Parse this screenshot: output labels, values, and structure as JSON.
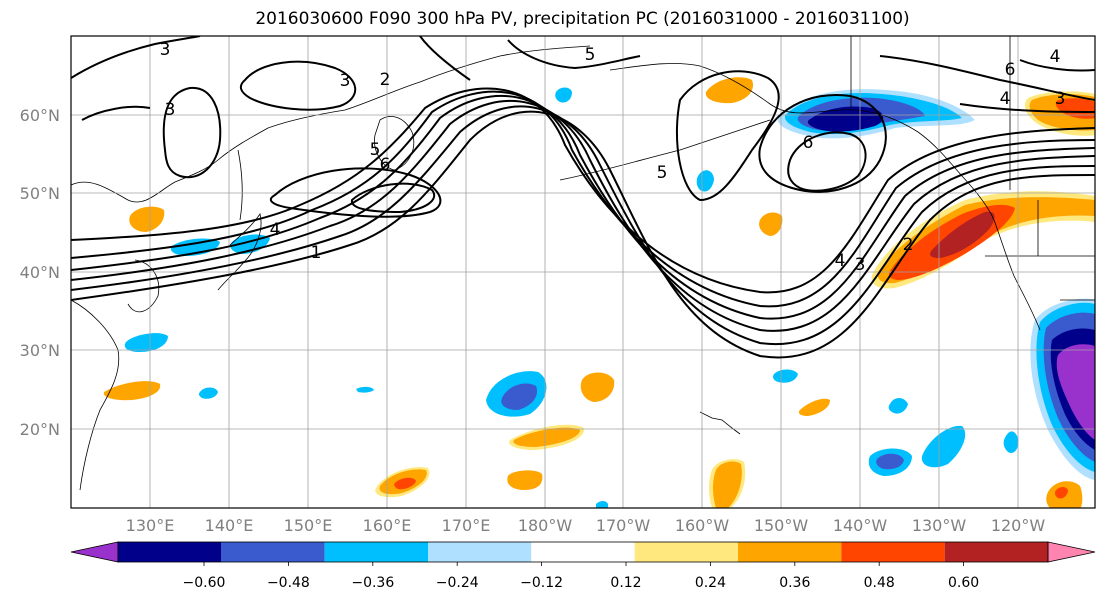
{
  "title": "2016030600 F090 300 hPa PV, precipitation PC (2016031000 - 2016031100)",
  "map": {
    "lat_labels": [
      "60°N",
      "50°N",
      "40°N",
      "30°N",
      "20°N"
    ],
    "lon_labels": [
      "130°E",
      "140°E",
      "150°E",
      "160°E",
      "170°E",
      "180°W",
      "170°W",
      "160°W",
      "150°W",
      "140°W",
      "130°W",
      "120°W"
    ],
    "contour_labels": [
      "1",
      "2",
      "3",
      "4",
      "5",
      "6",
      "3",
      "3",
      "4",
      "5",
      "6",
      "2",
      "3",
      "4",
      "5",
      "6",
      "4",
      "3"
    ],
    "colors": {
      "contour": "#000000",
      "grid": "#a0a0a0",
      "tick_label": "#808080"
    }
  },
  "colorbar": {
    "tick_labels": [
      "−0.60",
      "−0.48",
      "−0.36",
      "−0.24",
      "−0.12",
      "0.12",
      "0.24",
      "0.36",
      "0.48",
      "0.60"
    ],
    "colors": [
      "#9932cc",
      "#00008b",
      "#3a5bcd",
      "#00bfff",
      "#b0e0ff",
      "#ffffff",
      "#ffe97f",
      "#ffa500",
      "#ff4500",
      "#b22222",
      "#ff85b0"
    ]
  }
}
